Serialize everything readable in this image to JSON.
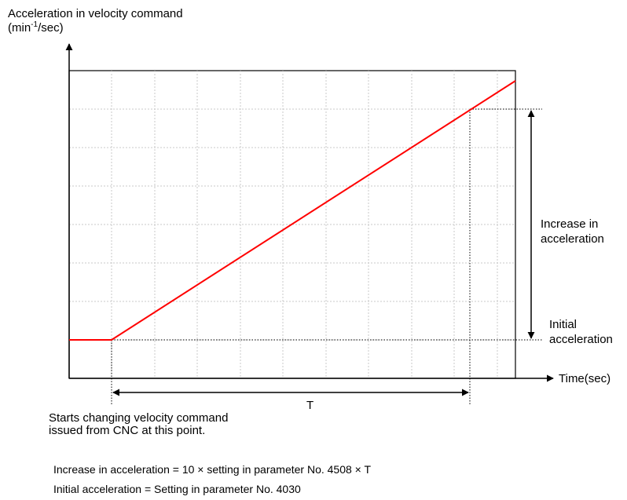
{
  "title": {
    "line1": "Acceleration in velocity command",
    "unit_prefix": "(min",
    "unit_sup": "-1",
    "unit_suffix": "/sec)"
  },
  "x_axis_label": "Time(sec)",
  "period_label": "T",
  "start_note": {
    "line1": "Starts changing velocity command",
    "line2": "issued from CNC at this point."
  },
  "increase_label": {
    "line1": "Increase in",
    "line2": "acceleration"
  },
  "initial_label": {
    "line1": "Initial",
    "line2": "acceleration"
  },
  "formulas": {
    "increase": "Increase in acceleration = 10 × setting in parameter No. 4508 × T",
    "initial": "Initial acceleration = Setting in parameter No. 4030"
  },
  "colors": {
    "curve": "#ff0000",
    "grid": "#c8c8c8",
    "axis": "#000000"
  }
}
